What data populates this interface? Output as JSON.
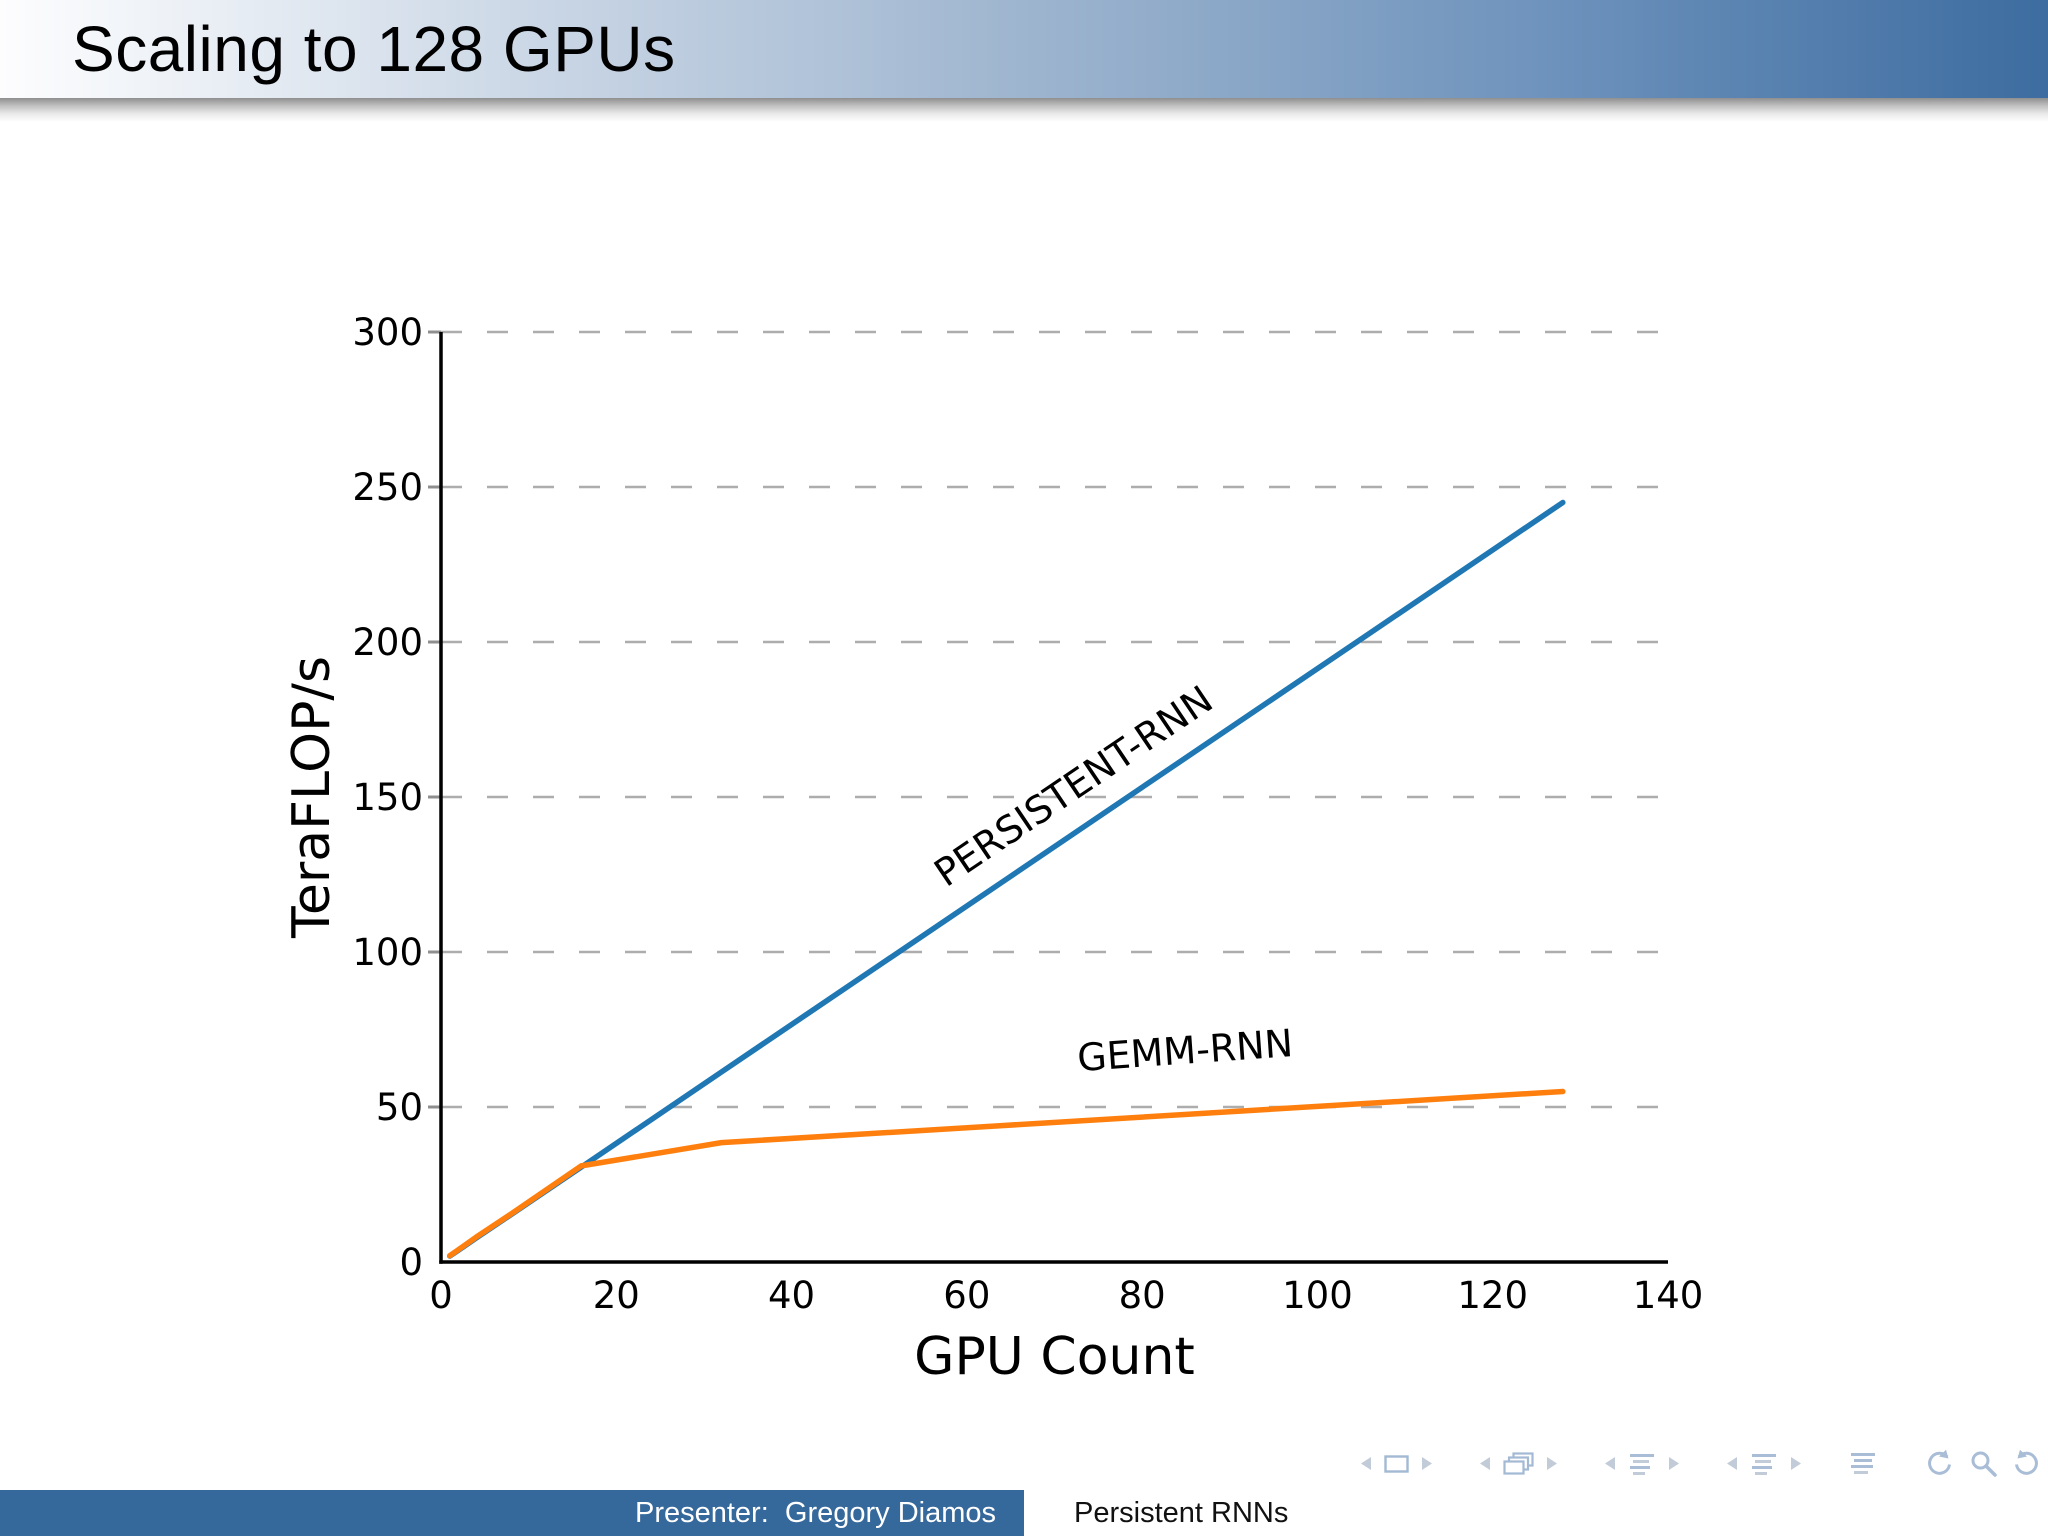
{
  "slide": {
    "title": "Scaling to 128 GPUs",
    "footer": {
      "presenter": "Presenter:  Gregory Diamos",
      "deck_title": "Persistent RNNs"
    }
  },
  "chart_data": {
    "type": "line",
    "title": "",
    "xlabel": "GPU Count",
    "ylabel": "TeraFLOP/s",
    "xlim": [
      0,
      140
    ],
    "ylim": [
      0,
      300
    ],
    "xticks": [
      0,
      20,
      40,
      60,
      80,
      100,
      120,
      140
    ],
    "yticks": [
      0,
      50,
      100,
      150,
      200,
      250,
      300
    ],
    "grid": "horizontal-dashed",
    "legend": "inline-rotated-line-labels",
    "style": {
      "grid_color": "#adadad",
      "axis_color": "#000000",
      "text_color": "#000000"
    },
    "series": [
      {
        "name": "PERSISTENT-RNN",
        "color": "#1f77b4",
        "x": [
          1,
          2,
          4,
          8,
          16,
          32,
          64,
          128
        ],
        "y": [
          1.9,
          3.8,
          7.7,
          15.3,
          30.6,
          61.3,
          122.5,
          245
        ],
        "label_anchor": {
          "gpu": 73,
          "tf": 150
        },
        "label_rotation_deg": -34
      },
      {
        "name": "GEMM-RNN",
        "color": "#ff7f0e",
        "x": [
          1,
          2,
          4,
          8,
          16,
          32,
          64,
          128
        ],
        "y": [
          2,
          4,
          8,
          15.5,
          31,
          38.5,
          44,
          55
        ],
        "label_anchor": {
          "gpu": 85,
          "tf": 64
        },
        "label_rotation_deg": -4
      }
    ]
  },
  "beamer_nav": {
    "icon_color_primary": "#a9bdd6",
    "icon_color_secondary": "#c2cbd8",
    "groups": [
      {
        "name": "slide-nav",
        "icons": [
          "prev-arrow-icon",
          "slide-icon",
          "next-arrow-icon"
        ]
      },
      {
        "name": "frame-nav",
        "icons": [
          "prev-arrow-icon",
          "frames-icon",
          "next-arrow-icon"
        ]
      },
      {
        "name": "subsection-nav",
        "icons": [
          "prev-arrow-icon",
          "outline-icon",
          "next-arrow-icon"
        ]
      },
      {
        "name": "section-nav",
        "icons": [
          "prev-arrow-icon",
          "outline-icon",
          "next-arrow-icon"
        ]
      },
      {
        "name": "presentation-nav",
        "icons": [
          "outline-icon"
        ]
      },
      {
        "name": "utility-nav",
        "icons": [
          "back-icon",
          "search-icon",
          "forward-icon"
        ]
      }
    ]
  }
}
